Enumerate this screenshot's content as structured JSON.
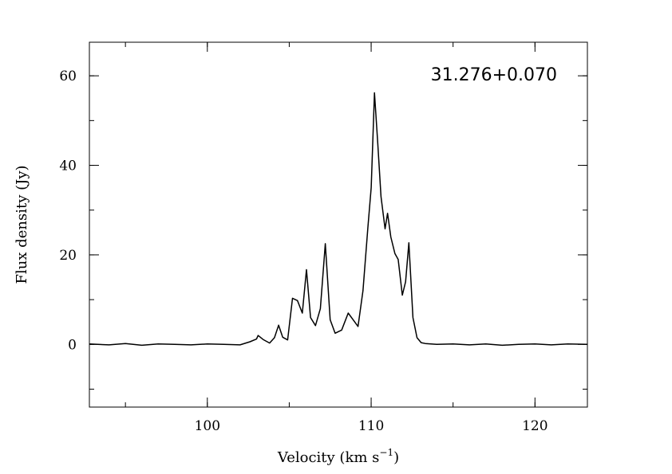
{
  "chart_data": {
    "type": "line",
    "annotation": "31.276+0.070",
    "xlabel": "Velocity (km s",
    "xlabel_superscript": "−1",
    "xlabel_close": ")",
    "ylabel": "Flux density (Jy)",
    "xlim": [
      92.8,
      123.2
    ],
    "ylim": [
      -14,
      67.5
    ],
    "x_ticks": [
      100,
      110,
      120
    ],
    "y_ticks": [
      0,
      20,
      40,
      60
    ],
    "x_minor_step": 5,
    "y_minor_step": 10,
    "grid": false,
    "series": [
      {
        "color": "#000000",
        "x": [
          92.8,
          94.0,
          95.0,
          96.0,
          97.0,
          98.0,
          99.0,
          100.0,
          101.0,
          102.0,
          102.6,
          103.0,
          103.1,
          103.4,
          103.8,
          104.1,
          104.35,
          104.6,
          104.9,
          105.2,
          105.5,
          105.8,
          106.05,
          106.3,
          106.6,
          106.9,
          107.2,
          107.5,
          107.8,
          108.2,
          108.6,
          108.9,
          109.2,
          109.5,
          109.8,
          110.0,
          110.2,
          110.4,
          110.6,
          110.85,
          111.0,
          111.2,
          111.45,
          111.65,
          111.9,
          112.1,
          112.3,
          112.55,
          112.8,
          113.05,
          113.3,
          114.0,
          115.0,
          116.0,
          117.0,
          118.0,
          119.0,
          120.0,
          121.0,
          122.0,
          123.2
        ],
        "y": [
          0.1,
          -0.1,
          0.2,
          -0.2,
          0.1,
          0.0,
          -0.1,
          0.1,
          0.0,
          -0.1,
          0.6,
          1.2,
          2.0,
          1.1,
          0.3,
          1.5,
          4.3,
          1.6,
          1.0,
          10.3,
          9.8,
          7.0,
          16.7,
          6.0,
          4.2,
          8.0,
          22.5,
          5.5,
          2.5,
          3.2,
          7.0,
          5.5,
          4.0,
          12.0,
          26.0,
          35.0,
          56.2,
          45.0,
          33.0,
          25.8,
          29.3,
          24.0,
          20.3,
          19.0,
          11.0,
          14.0,
          22.7,
          6.0,
          1.5,
          0.4,
          0.2,
          0.0,
          0.1,
          -0.1,
          0.1,
          -0.2,
          0.0,
          0.1,
          -0.1,
          0.1,
          0.0
        ]
      }
    ]
  }
}
